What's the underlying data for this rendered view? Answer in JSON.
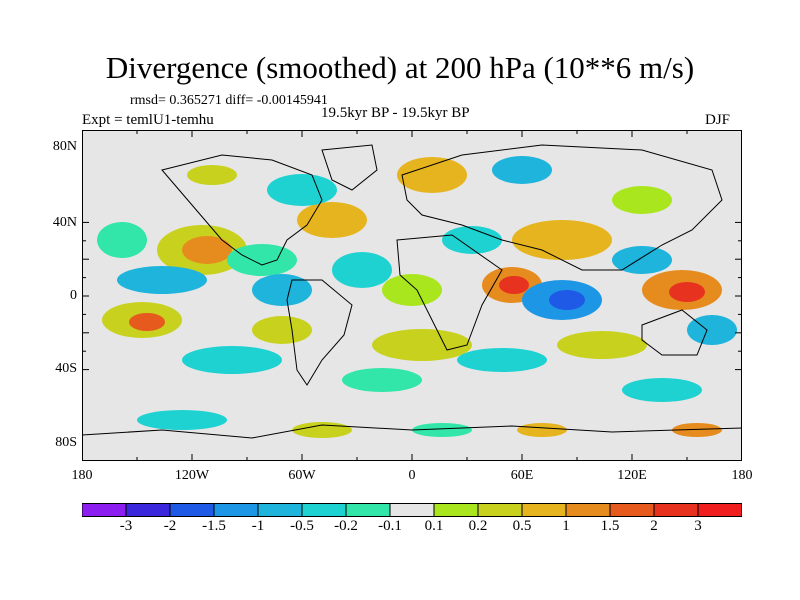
{
  "figure": {
    "title": "Divergence (smoothed) at 200 hPa (10**6 m/s)",
    "stats_text": "rmsd= 0.365271 diff= -0.00145941",
    "period_text": "19.5kyr BP - 19.5kyr BP",
    "experiment_text": "Expt = temlU1-temhu",
    "season": "DJF"
  },
  "map": {
    "projection": "cylindrical equidistant",
    "ocean_background": "#e6e6e6",
    "lat_labels": [
      "80N",
      "40N",
      "0",
      "40S",
      "80S"
    ],
    "lon_labels": [
      "180",
      "120W",
      "60W",
      "0",
      "60E",
      "120E",
      "180"
    ]
  },
  "colorbar": {
    "labels": [
      "-3",
      "-2",
      "-1.5",
      "-1",
      "-0.5",
      "-0.2",
      "-0.1",
      "0.1",
      "0.2",
      "0.5",
      "1",
      "1.5",
      "2",
      "3"
    ],
    "colors": [
      "#8c1ef0",
      "#3c28dc",
      "#1e5ae6",
      "#1e96e6",
      "#1eb4dc",
      "#1ed2d2",
      "#32e6aa",
      "#e6e6e6",
      "#aae61e",
      "#c8d21e",
      "#e6b41e",
      "#e68c1e",
      "#e65a1e",
      "#e6321e",
      "#f01e1e"
    ]
  }
}
